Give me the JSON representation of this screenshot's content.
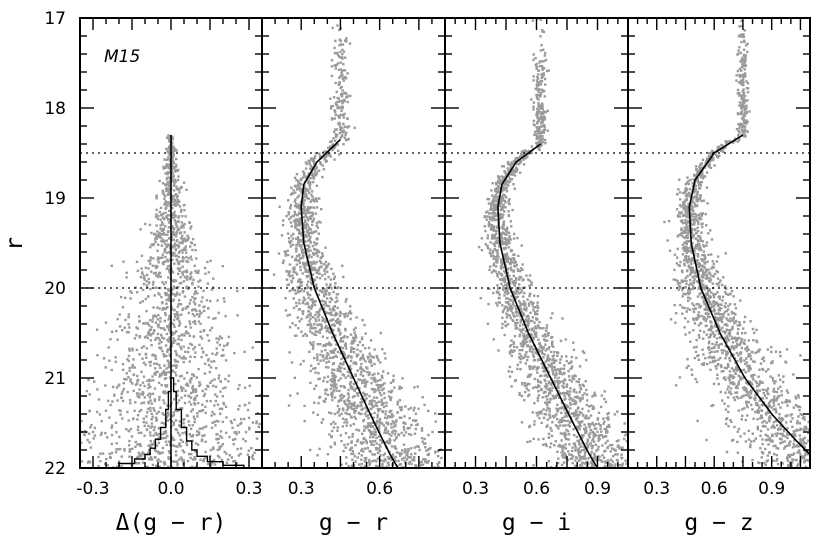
{
  "chart_data": [
    {
      "type": "scatter",
      "annotation": "M15",
      "xlabel": "Δ(g − r)",
      "ylabel": "r",
      "xlim": [
        -0.35,
        0.35
      ],
      "ylim": [
        22,
        17
      ],
      "xticks": [
        -0.3,
        0.0,
        0.3
      ],
      "xtick_labels": [
        "-0.3",
        "0.0",
        "0.3"
      ],
      "yticks": [
        17,
        18,
        19,
        20,
        21,
        22
      ],
      "ytick_labels": [
        "17",
        "18",
        "19",
        "20",
        "21",
        "22"
      ],
      "hlines": [
        18.5,
        20.0
      ],
      "point_color": "#9a9a9a",
      "fiducial": [
        [
          0.0,
          18.3
        ],
        [
          0.0,
          22.0
        ]
      ],
      "histogram": {
        "x": [
          -0.33,
          -0.2,
          -0.14,
          -0.1,
          -0.08,
          -0.06,
          -0.04,
          -0.02,
          -0.01,
          0.0,
          0.01,
          0.02,
          0.04,
          0.06,
          0.08,
          0.1,
          0.14,
          0.2,
          0.28
        ],
        "r": [
          22.0,
          21.95,
          21.9,
          21.85,
          21.78,
          21.68,
          21.55,
          21.35,
          21.15,
          21.0,
          21.15,
          21.35,
          21.55,
          21.7,
          21.8,
          21.87,
          21.93,
          21.97,
          22.0
        ]
      }
    },
    {
      "type": "scatter",
      "xlabel": "g − r",
      "xlim": [
        0.15,
        0.85
      ],
      "ylim": [
        22,
        17
      ],
      "xticks": [
        0.3,
        0.6
      ],
      "xtick_labels": [
        "0.3",
        "0.6"
      ],
      "hlines": [
        18.5,
        20.0
      ],
      "point_color": "#9a9a9a",
      "fiducial": [
        [
          0.45,
          18.35
        ],
        [
          0.36,
          18.6
        ],
        [
          0.31,
          18.85
        ],
        [
          0.3,
          19.1
        ],
        [
          0.31,
          19.5
        ],
        [
          0.35,
          20.0
        ],
        [
          0.42,
          20.5
        ],
        [
          0.5,
          21.0
        ],
        [
          0.58,
          21.5
        ],
        [
          0.64,
          21.85
        ],
        [
          0.67,
          22.0
        ]
      ]
    },
    {
      "type": "scatter",
      "xlabel": "g − i",
      "xlim": [
        0.15,
        1.05
      ],
      "ylim": [
        22,
        17
      ],
      "xticks": [
        0.3,
        0.6,
        0.9
      ],
      "xtick_labels": [
        "0.3",
        "0.6",
        "0.9"
      ],
      "hlines": [
        18.5,
        20.0
      ],
      "point_color": "#9a9a9a",
      "fiducial": [
        [
          0.62,
          18.4
        ],
        [
          0.5,
          18.6
        ],
        [
          0.43,
          18.85
        ],
        [
          0.41,
          19.1
        ],
        [
          0.42,
          19.5
        ],
        [
          0.47,
          20.0
        ],
        [
          0.56,
          20.5
        ],
        [
          0.67,
          21.0
        ],
        [
          0.78,
          21.5
        ],
        [
          0.86,
          21.85
        ],
        [
          0.9,
          22.0
        ]
      ]
    },
    {
      "type": "scatter",
      "xlabel": "g − z",
      "xlim": [
        0.15,
        1.1
      ],
      "ylim": [
        22,
        17
      ],
      "xticks": [
        0.3,
        0.6,
        0.9
      ],
      "xtick_labels": [
        "0.3",
        "0.6",
        "0.9"
      ],
      "hlines": [
        18.5,
        20.0
      ],
      "point_color": "#9a9a9a",
      "fiducial": [
        [
          0.75,
          18.3
        ],
        [
          0.6,
          18.5
        ],
        [
          0.5,
          18.8
        ],
        [
          0.47,
          19.1
        ],
        [
          0.48,
          19.5
        ],
        [
          0.53,
          20.0
        ],
        [
          0.63,
          20.5
        ],
        [
          0.76,
          21.0
        ],
        [
          0.9,
          21.4
        ],
        [
          1.03,
          21.7
        ],
        [
          1.1,
          21.85
        ]
      ]
    }
  ]
}
